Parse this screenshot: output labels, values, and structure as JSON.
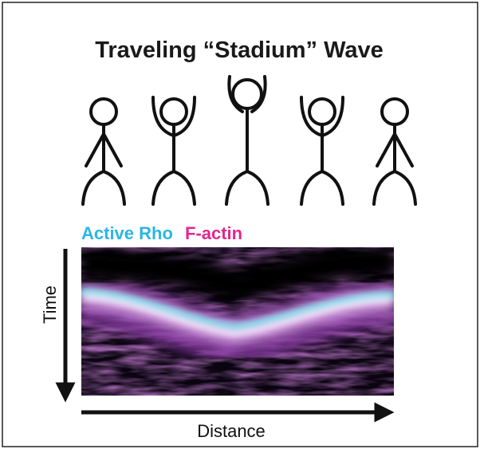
{
  "title": "Traveling “Stadium” Wave",
  "legend": {
    "labels": [
      {
        "text": "Active Rho"
      },
      {
        "text": "F-actin"
      }
    ]
  },
  "axes": {
    "y_label": "Time",
    "x_label": "Distance"
  }
}
